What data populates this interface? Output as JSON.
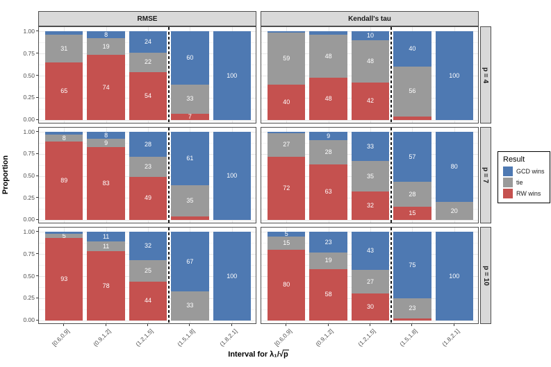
{
  "legend": {
    "title": "Result",
    "items": [
      {
        "label": "GCD wins",
        "color": "#4e79b2"
      },
      {
        "label": "tie",
        "color": "#9a9a9a"
      },
      {
        "label": "RW wins",
        "color": "#c5514f"
      }
    ]
  },
  "axes": {
    "y_title": "Proportion",
    "y_ticks": [
      {
        "value": 1.0,
        "label": "1.00"
      },
      {
        "value": 0.75,
        "label": "0.75"
      },
      {
        "value": 0.5,
        "label": "0.50"
      },
      {
        "value": 0.25,
        "label": "0.25"
      },
      {
        "value": 0.0,
        "label": "0.00"
      }
    ],
    "x_title": {
      "text": "Interval for λ₁/",
      "sqrt": "√",
      "radicand": "p"
    }
  },
  "chart_data": {
    "type": "bar",
    "variant": "stacked-proportion-faceted",
    "title": "",
    "facet_columns": [
      "RMSE",
      "Kendall's tau"
    ],
    "facet_rows": [
      "p = 4",
      "p = 7",
      "p = 10"
    ],
    "categories": [
      "[0.6,0.9]",
      "(0.9,1.2]",
      "(1.2,1.5]",
      "(1.5,1.8]",
      "(1.8,2.1]"
    ],
    "stack_order_bottom_to_top": [
      "RW wins",
      "tie",
      "GCD wins"
    ],
    "colors": {
      "RW wins": "#c5514f",
      "tie": "#9a9a9a",
      "GCD wins": "#4e79b2"
    },
    "ylim": [
      0,
      1
    ],
    "y_major_gridlines": [
      0,
      0.25,
      0.5,
      0.75,
      1
    ],
    "y_minor_gridlines": [
      0.125,
      0.375,
      0.625,
      0.875
    ],
    "label_min_value": 5,
    "dashed_divider_between_categories": [
      "(1.2,1.5]",
      "(1.5,1.8]"
    ],
    "legend_position": "right",
    "panels": [
      {
        "facet_col": "RMSE",
        "facet_row": "p = 4",
        "series": {
          "RW wins": [
            65,
            74,
            54,
            7,
            0
          ],
          "tie": [
            31,
            19,
            22,
            33,
            0
          ],
          "GCD wins": [
            4,
            8,
            24,
            60,
            100
          ]
        }
      },
      {
        "facet_col": "Kendall's tau",
        "facet_row": "p = 4",
        "series": {
          "RW wins": [
            40,
            48,
            42,
            4,
            0
          ],
          "tie": [
            59,
            48,
            48,
            56,
            0
          ],
          "GCD wins": [
            1,
            4,
            10,
            40,
            100
          ]
        }
      },
      {
        "facet_col": "RMSE",
        "facet_row": "p = 7",
        "series": {
          "RW wins": [
            89,
            83,
            49,
            4,
            0
          ],
          "tie": [
            8,
            9,
            23,
            35,
            0
          ],
          "GCD wins": [
            3,
            8,
            28,
            61,
            100
          ]
        }
      },
      {
        "facet_col": "Kendall's tau",
        "facet_row": "p = 7",
        "series": {
          "RW wins": [
            72,
            63,
            32,
            15,
            0
          ],
          "tie": [
            27,
            28,
            35,
            28,
            20
          ],
          "GCD wins": [
            1,
            9,
            33,
            57,
            80
          ]
        }
      },
      {
        "facet_col": "RMSE",
        "facet_row": "p = 10",
        "series": {
          "RW wins": [
            93,
            78,
            44,
            0,
            0
          ],
          "tie": [
            5,
            11,
            25,
            33,
            0
          ],
          "GCD wins": [
            2,
            11,
            32,
            67,
            100
          ]
        }
      },
      {
        "facet_col": "Kendall's tau",
        "facet_row": "p = 10",
        "series": {
          "RW wins": [
            80,
            58,
            30,
            2,
            0
          ],
          "tie": [
            15,
            19,
            27,
            23,
            0
          ],
          "GCD wins": [
            5,
            23,
            43,
            75,
            100
          ]
        }
      }
    ]
  }
}
